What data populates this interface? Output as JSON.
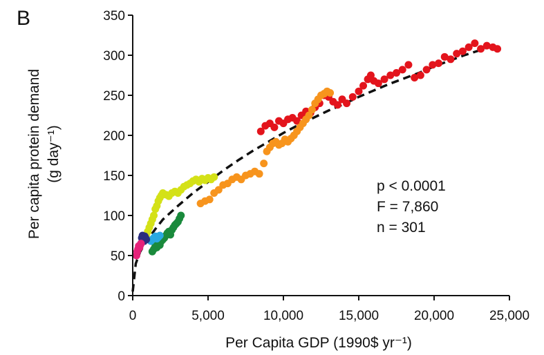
{
  "chart_data": {
    "type": "scatter",
    "panel_label": "B",
    "xlabel": "Per Capita GDP (1990$ yr⁻¹)",
    "ylabel_line1": "Per capita protein demand",
    "ylabel_line2": "(g day⁻¹)",
    "xlim": [
      0,
      25000
    ],
    "ylim": [
      0,
      350
    ],
    "x_ticks": [
      0,
      5000,
      10000,
      15000,
      20000,
      25000
    ],
    "x_tick_labels": [
      "0",
      "5,000",
      "10,000",
      "15,000",
      "20,000",
      "25,000"
    ],
    "y_ticks": [
      0,
      50,
      100,
      150,
      200,
      250,
      300,
      350
    ],
    "y_tick_labels": [
      "0",
      "50",
      "100",
      "150",
      "200",
      "250",
      "300",
      "350"
    ],
    "grid": false,
    "legend": "none",
    "annotations": [
      "p < 0.0001",
      "F = 7,860",
      "n = 301"
    ],
    "fit_curve": {
      "style": "dashed",
      "color": "#111111",
      "x": [
        0,
        200,
        500,
        1000,
        1500,
        2000,
        3000,
        4000,
        5000,
        6000,
        7000,
        8000,
        9000,
        10000,
        11000,
        12000,
        13000,
        14000,
        15000,
        16000,
        17000,
        18000,
        19000,
        20000,
        21000,
        22000,
        23000,
        24000
      ],
      "y": [
        5,
        40,
        55,
        70,
        83,
        95,
        112,
        128,
        142,
        156,
        169,
        181,
        192,
        203,
        213,
        222,
        231,
        239,
        248,
        256,
        264,
        271,
        278,
        286,
        293,
        300,
        306,
        313
      ]
    },
    "series": [
      {
        "color": "#e3141c",
        "x": [
          8500,
          8800,
          9100,
          9400,
          9700,
          10000,
          10300,
          10600,
          10900,
          11200,
          11500,
          11800,
          12100,
          12400,
          12700,
          13000,
          13300,
          13600,
          13900,
          14200,
          14600,
          15000,
          15300,
          15600,
          15800,
          16000,
          16300,
          16700,
          17100,
          17500,
          17900,
          18300,
          18700,
          19100,
          19500,
          19900,
          20300,
          20700,
          21100,
          21500,
          21900,
          22300,
          22700,
          23100,
          23500,
          23900,
          24200
        ],
        "y": [
          205,
          212,
          215,
          210,
          218,
          215,
          220,
          222,
          218,
          225,
          230,
          228,
          235,
          240,
          250,
          248,
          242,
          238,
          245,
          240,
          248,
          255,
          262,
          270,
          275,
          268,
          265,
          270,
          275,
          278,
          282,
          288,
          272,
          275,
          282,
          288,
          290,
          298,
          295,
          302,
          305,
          310,
          315,
          308,
          312,
          310,
          308
        ]
      },
      {
        "color": "#f7941d",
        "x": [
          4500,
          4800,
          5100,
          5400,
          5700,
          6000,
          6300,
          6600,
          6900,
          7200,
          7500,
          7800,
          8100,
          8400,
          8700,
          8900,
          9100,
          9300,
          9500,
          9700,
          9900,
          10100,
          10300,
          10500,
          10700,
          10900,
          11100,
          11300,
          11500,
          11700,
          11900,
          12100,
          12300,
          12500,
          12700,
          12900,
          13100
        ],
        "y": [
          115,
          118,
          120,
          128,
          132,
          138,
          140,
          145,
          148,
          145,
          150,
          152,
          155,
          152,
          165,
          180,
          185,
          190,
          192,
          188,
          190,
          195,
          192,
          196,
          200,
          205,
          210,
          215,
          220,
          225,
          232,
          240,
          245,
          250,
          252,
          255,
          253
        ]
      },
      {
        "color": "#d4e117",
        "x": [
          900,
          1000,
          1100,
          1200,
          1300,
          1400,
          1500,
          1600,
          1700,
          1800,
          1900,
          2000,
          2200,
          2400,
          2600,
          2800,
          3000,
          3200,
          3400,
          3600,
          3800,
          4000,
          4200,
          4400,
          4600,
          4800,
          5000,
          5200,
          5400
        ],
        "y": [
          75,
          80,
          85,
          90,
          95,
          100,
          108,
          112,
          118,
          122,
          125,
          128,
          126,
          124,
          128,
          130,
          128,
          132,
          136,
          138,
          140,
          143,
          145,
          142,
          146,
          144,
          147,
          145,
          148
        ]
      },
      {
        "color": "#1a8a3c",
        "x": [
          1300,
          1400,
          1500,
          1600,
          1700,
          1800,
          1900,
          2000,
          2100,
          2200,
          2300,
          2400,
          2500,
          2600,
          2700,
          2800,
          2900,
          3000,
          3100,
          3200
        ],
        "y": [
          55,
          58,
          62,
          60,
          65,
          63,
          68,
          70,
          72,
          75,
          78,
          80,
          76,
          82,
          85,
          88,
          90,
          92,
          96,
          100
        ]
      },
      {
        "color": "#29a9e0",
        "x": [
          1200,
          1300,
          1400,
          1500,
          1600,
          1700,
          1800
        ],
        "y": [
          68,
          70,
          72,
          74,
          71,
          73,
          75
        ]
      },
      {
        "color": "#2b2d7e",
        "x": [
          550,
          600,
          650,
          700,
          750,
          800,
          850,
          900
        ],
        "y": [
          65,
          72,
          75,
          70,
          68,
          74,
          72,
          70
        ]
      },
      {
        "color": "#e5227a",
        "x": [
          250,
          300,
          350,
          400,
          450,
          500,
          550
        ],
        "y": [
          50,
          55,
          58,
          62,
          60,
          63,
          65
        ]
      }
    ]
  }
}
